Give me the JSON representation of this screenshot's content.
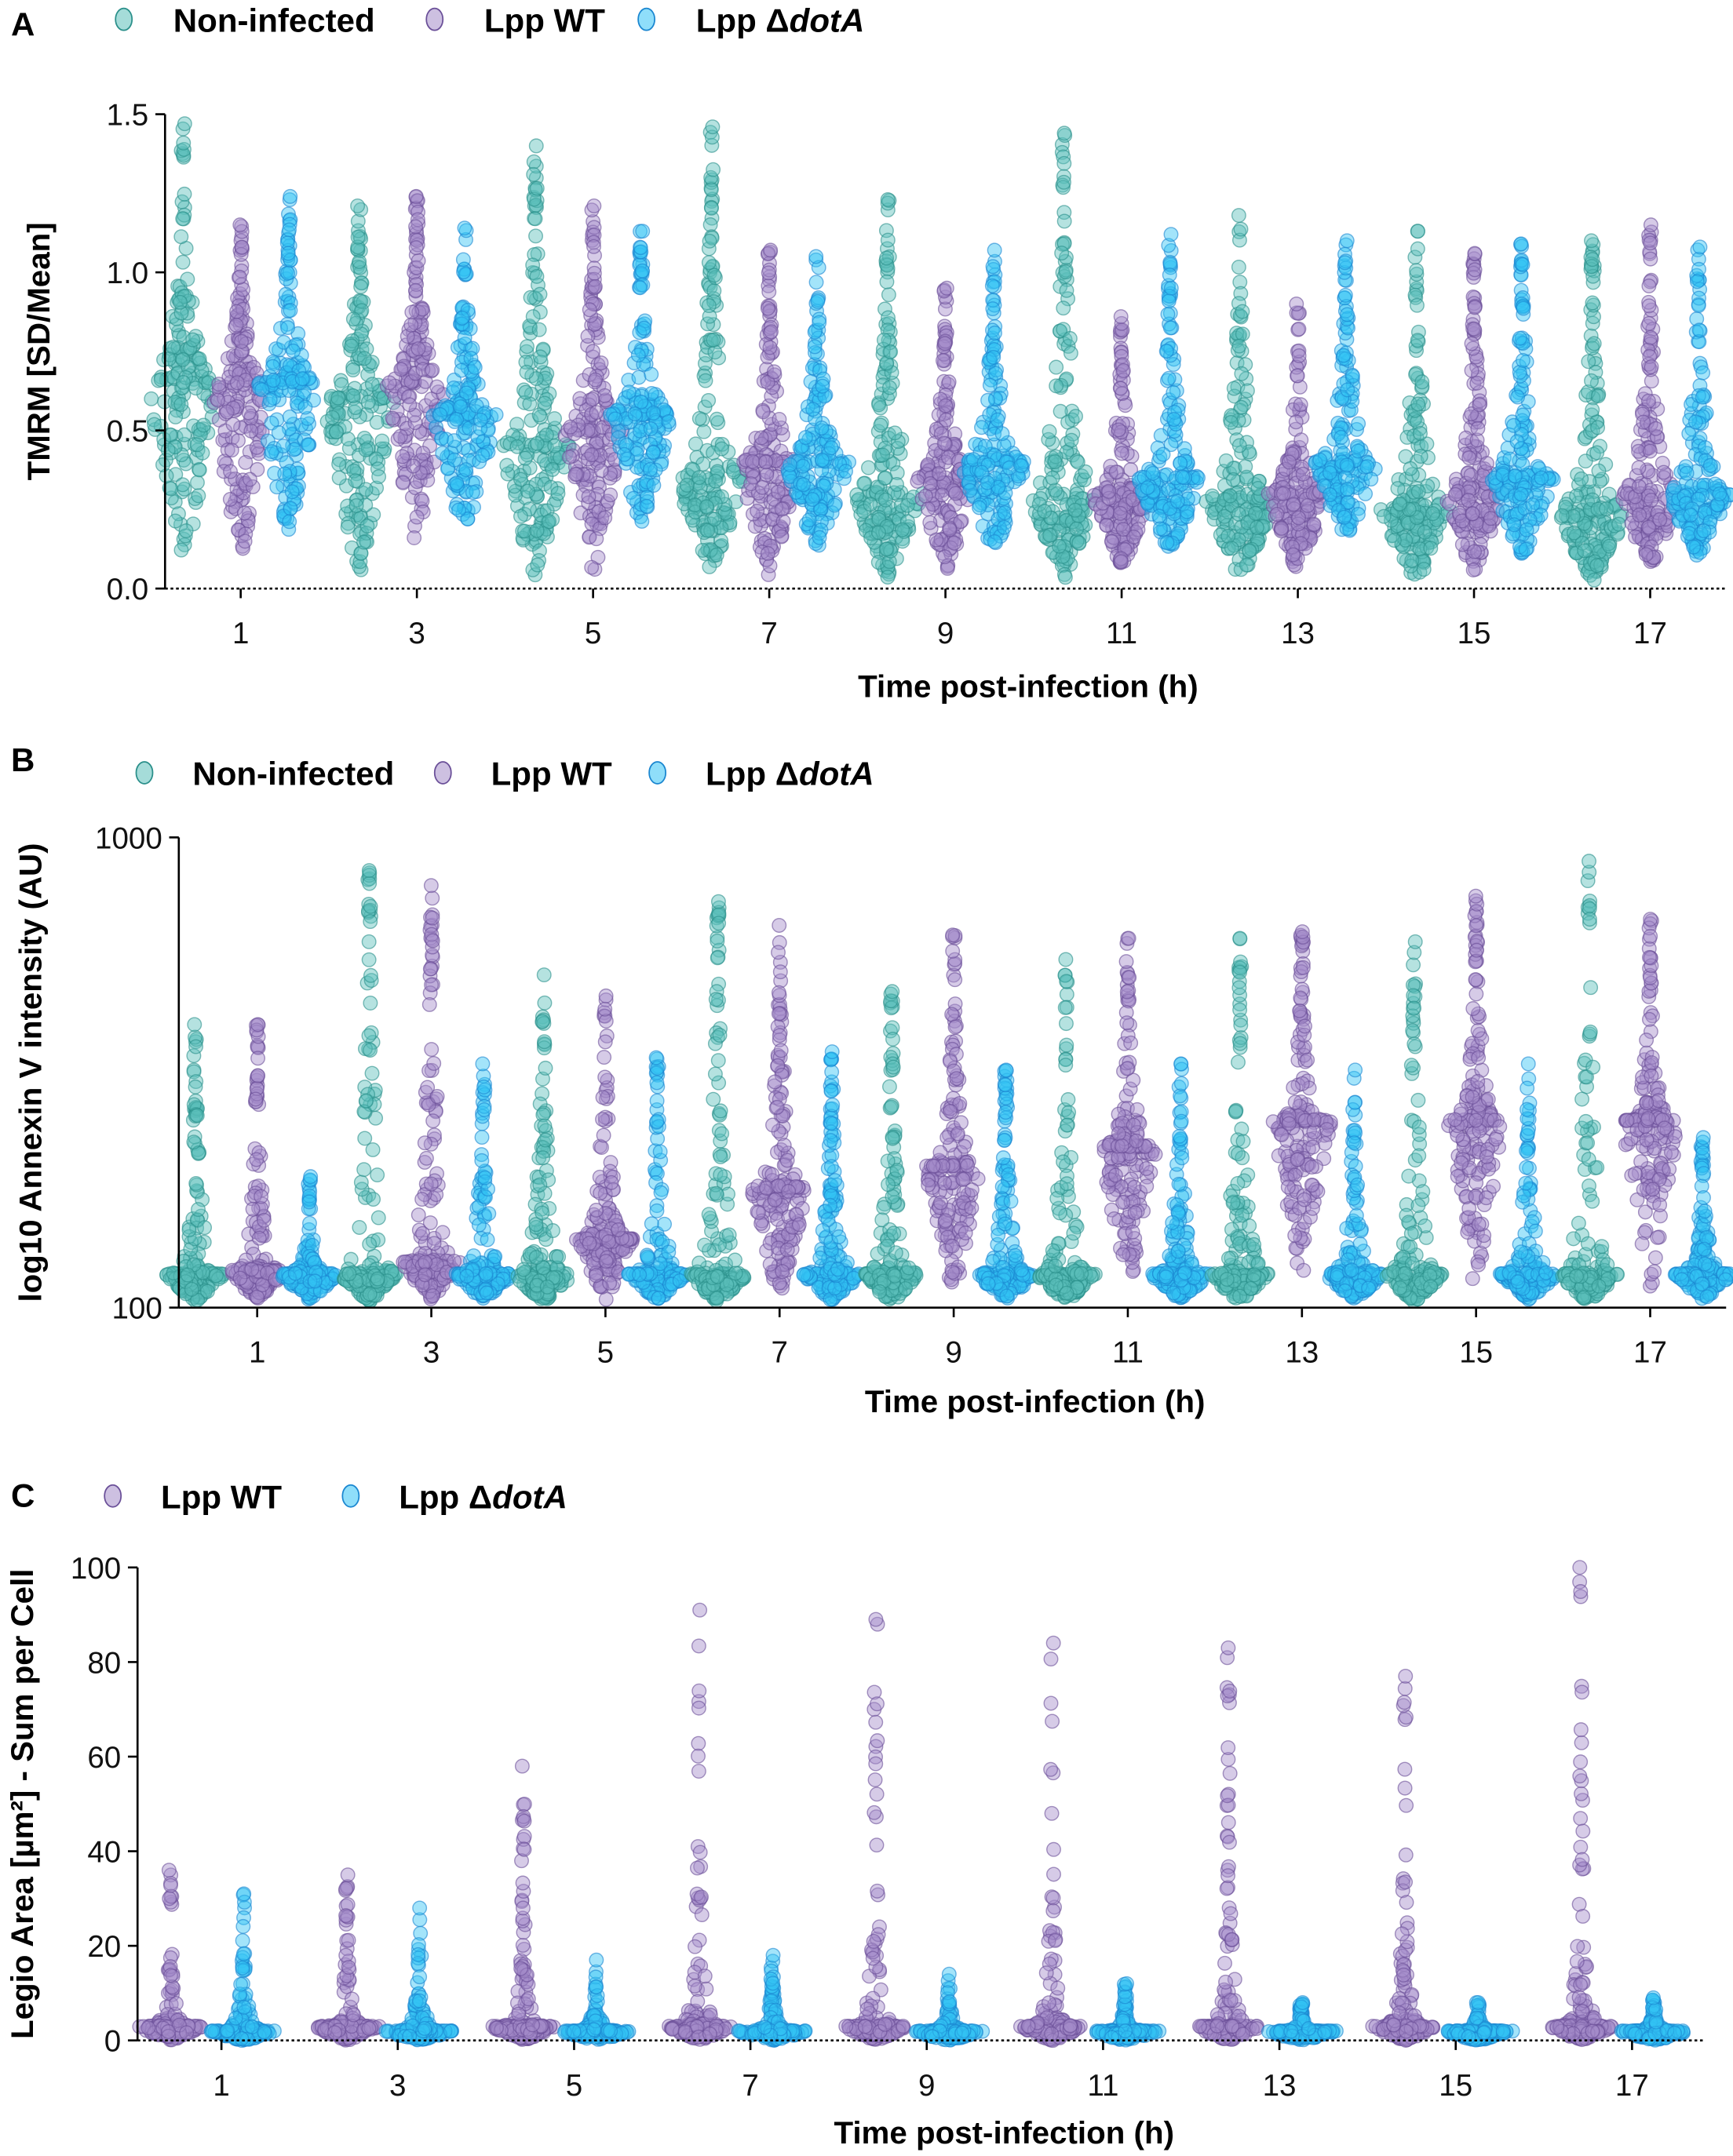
{
  "chart_data": [
    {
      "panel": "A",
      "type": "scatter",
      "subtype": "swarm",
      "xlabel": "Time post-infection (h)",
      "ylabel": "TMRM [SD/Mean]",
      "ylim": [
        0,
        1.5
      ],
      "yscale": "linear",
      "yticks": [
        "0.0",
        "0.5",
        "1.0",
        "1.5"
      ],
      "ytick_values": [
        0,
        0.5,
        1.0,
        1.5
      ],
      "categories": [
        "1",
        "3",
        "5",
        "7",
        "9",
        "11",
        "13",
        "15",
        "17"
      ],
      "legend": [
        {
          "prefix": "Non-infected",
          "italic": ""
        },
        {
          "prefix": "Lpp WT",
          "italic": ""
        },
        {
          "prefix": "Lpp Δ",
          "italic": "dotA"
        }
      ],
      "legend_position": "top",
      "series": [
        {
          "name": "Non-infected",
          "color": "#5bbfba",
          "stroke": "#2a8f8a",
          "min": [
            0.07,
            0.04,
            0.04,
            0.05,
            0.03,
            0.03,
            0.03,
            0.02,
            0.02
          ],
          "median": [
            0.65,
            0.6,
            0.45,
            0.35,
            0.3,
            0.3,
            0.28,
            0.25,
            0.25
          ],
          "max": [
            1.47,
            1.21,
            1.4,
            1.46,
            1.23,
            1.44,
            1.18,
            1.13,
            1.1
          ]
        },
        {
          "name": "Lpp WT",
          "color": "#a48cc9",
          "stroke": "#6a4f98",
          "min": [
            0.09,
            0.13,
            0.04,
            0.03,
            0.05,
            0.07,
            0.05,
            0.05,
            0.06
          ],
          "median": [
            0.65,
            0.65,
            0.5,
            0.4,
            0.35,
            0.3,
            0.3,
            0.3,
            0.3
          ],
          "max": [
            1.15,
            1.24,
            1.21,
            1.07,
            0.95,
            0.86,
            0.9,
            1.06,
            1.15
          ]
        },
        {
          "name": "Lpp ΔdotA",
          "color": "#33c3f5",
          "stroke": "#1a86d0",
          "min": [
            0.17,
            0.17,
            0.2,
            0.13,
            0.12,
            0.12,
            0.15,
            0.1,
            0.1
          ],
          "median": [
            0.65,
            0.55,
            0.55,
            0.4,
            0.4,
            0.35,
            0.4,
            0.35,
            0.3
          ],
          "max": [
            1.24,
            1.14,
            1.13,
            1.05,
            1.07,
            1.12,
            1.1,
            1.09,
            1.08
          ]
        }
      ]
    },
    {
      "panel": "B",
      "type": "scatter",
      "subtype": "swarm",
      "xlabel": "Time post-infection (h)",
      "ylabel": "log10 Annexin V intensity (AU)",
      "ylim": [
        100,
        1000
      ],
      "yscale": "log",
      "yticks": [
        "100",
        "1000"
      ],
      "ytick_values": [
        100,
        1000
      ],
      "categories": [
        "1",
        "3",
        "5",
        "7",
        "9",
        "11",
        "13",
        "15",
        "17"
      ],
      "legend": [
        {
          "prefix": "Non-infected",
          "italic": ""
        },
        {
          "prefix": "Lpp WT",
          "italic": ""
        },
        {
          "prefix": "Lpp Δ",
          "italic": "dotA"
        }
      ],
      "legend_position": "top",
      "series": [
        {
          "name": "Non-infected",
          "color": "#5bbfba",
          "stroke": "#2a8f8a",
          "min": [
            103,
            103,
            103,
            103,
            103,
            103,
            103,
            103,
            103
          ],
          "median": [
            118,
            118,
            118,
            118,
            118,
            118,
            118,
            118,
            118
          ],
          "max": [
            400,
            850,
            510,
            730,
            470,
            550,
            610,
            600,
            890
          ]
        },
        {
          "name": "Lpp WT",
          "color": "#a48cc9",
          "stroke": "#6a4f98",
          "min": [
            104,
            104,
            104,
            104,
            104,
            104,
            104,
            104,
            104
          ],
          "median": [
            120,
            125,
            140,
            180,
            200,
            220,
            250,
            250,
            250
          ],
          "max": [
            400,
            790,
            460,
            650,
            620,
            610,
            630,
            750,
            670
          ]
        },
        {
          "name": "Lpp ΔdotA",
          "color": "#33c3f5",
          "stroke": "#1a86d0",
          "min": [
            104,
            104,
            104,
            104,
            104,
            104,
            104,
            104,
            104
          ],
          "median": [
            118,
            118,
            118,
            118,
            118,
            118,
            118,
            118,
            118
          ],
          "max": [
            190,
            330,
            340,
            350,
            320,
            330,
            320,
            330,
            230
          ]
        }
      ]
    },
    {
      "panel": "C",
      "type": "scatter",
      "subtype": "swarm",
      "xlabel": "Time post-infection (h)",
      "ylabel": "Legio Area [µm²] - Sum per Cell",
      "ylim": [
        0,
        100
      ],
      "yscale": "linear",
      "yticks": [
        "0",
        "20",
        "40",
        "60",
        "80",
        "100"
      ],
      "ytick_values": [
        0,
        20,
        40,
        60,
        80,
        100
      ],
      "categories": [
        "1",
        "3",
        "5",
        "7",
        "9",
        "11",
        "13",
        "15",
        "17"
      ],
      "legend": [
        {
          "prefix": "Lpp WT",
          "italic": ""
        },
        {
          "prefix": "Lpp Δ",
          "italic": "dotA"
        }
      ],
      "legend_position": "top",
      "series": [
        {
          "name": "Lpp WT",
          "color": "#a48cc9",
          "stroke": "#6a4f98",
          "min": [
            0,
            0,
            0,
            0,
            0,
            0,
            0,
            0,
            0
          ],
          "median": [
            3,
            3,
            3,
            3,
            3,
            3,
            3,
            3,
            3
          ],
          "max": [
            36,
            35,
            58,
            91,
            89,
            84,
            83,
            77,
            100
          ]
        },
        {
          "name": "Lpp ΔdotA",
          "color": "#33c3f5",
          "stroke": "#1a86d0",
          "min": [
            0,
            0,
            0,
            0,
            0,
            0,
            0,
            0,
            0
          ],
          "median": [
            2,
            2,
            2,
            2,
            2,
            2,
            2,
            2,
            2
          ],
          "max": [
            31,
            28,
            17,
            18,
            14,
            12,
            8,
            8,
            9
          ]
        }
      ]
    }
  ]
}
